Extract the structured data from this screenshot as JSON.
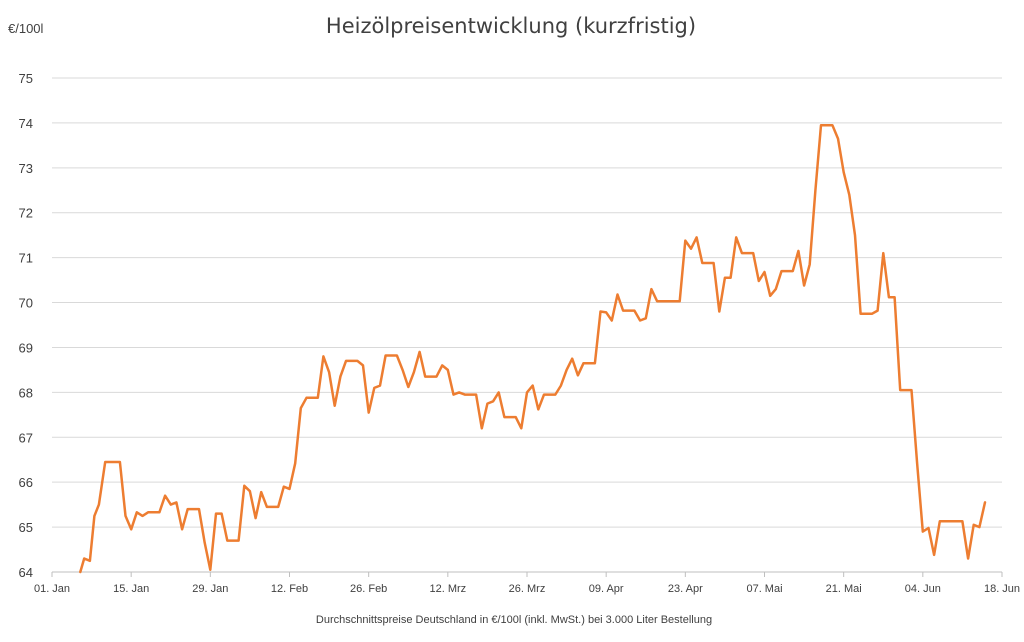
{
  "chart_data": {
    "type": "line",
    "title": "Heizölpreisentwicklung (kurzfristig)",
    "ylabel": "€/100l",
    "xlabel": "Durchschnittspreise Deutschland in €/100l (inkl. MwSt.) bei 3.000 Liter Bestellung",
    "ylim": [
      64,
      75
    ],
    "yticks": [
      64,
      65,
      66,
      67,
      68,
      69,
      70,
      71,
      72,
      73,
      74,
      75
    ],
    "xlim": [
      0,
      168
    ],
    "xticks": [
      {
        "x": 0,
        "label": "01. Jan"
      },
      {
        "x": 14,
        "label": "15. Jan"
      },
      {
        "x": 28,
        "label": "29. Jan"
      },
      {
        "x": 42,
        "label": "12. Feb"
      },
      {
        "x": 56,
        "label": "26. Feb"
      },
      {
        "x": 70,
        "label": "12. Mrz"
      },
      {
        "x": 84,
        "label": "26. Mrz"
      },
      {
        "x": 98,
        "label": "09. Apr"
      },
      {
        "x": 112,
        "label": "23. Apr"
      },
      {
        "x": 126,
        "label": "07. Mai"
      },
      {
        "x": 140,
        "label": "21. Mai"
      },
      {
        "x": 154,
        "label": "04. Jun"
      },
      {
        "x": 168,
        "label": "18. Jun"
      }
    ],
    "grid": true,
    "legend": "none",
    "color": "#ed7d31",
    "series": [
      {
        "points": [
          [
            5,
            64.0
          ],
          [
            5.7,
            64.3
          ],
          [
            6.7,
            64.25
          ],
          [
            7.5,
            65.25
          ],
          [
            8.3,
            65.5
          ],
          [
            9.4,
            66.45
          ],
          [
            11,
            66.45
          ],
          [
            12,
            66.45
          ],
          [
            13,
            65.25
          ],
          [
            14,
            64.95
          ],
          [
            15,
            65.33
          ],
          [
            16,
            65.25
          ],
          [
            17,
            65.33
          ],
          [
            19,
            65.33
          ],
          [
            20,
            65.7
          ],
          [
            21,
            65.5
          ],
          [
            22,
            65.55
          ],
          [
            23,
            64.95
          ],
          [
            24,
            65.4
          ],
          [
            26,
            65.4
          ],
          [
            27,
            64.65
          ],
          [
            28,
            64.05
          ],
          [
            29,
            65.3
          ],
          [
            30,
            65.3
          ],
          [
            31,
            64.7
          ],
          [
            33,
            64.7
          ],
          [
            34,
            65.92
          ],
          [
            35,
            65.8
          ],
          [
            36,
            65.2
          ],
          [
            37,
            65.78
          ],
          [
            38,
            65.45
          ],
          [
            40,
            65.45
          ],
          [
            41,
            65.9
          ],
          [
            42,
            65.85
          ],
          [
            43,
            66.42
          ],
          [
            44,
            67.65
          ],
          [
            45,
            67.88
          ],
          [
            47,
            67.88
          ],
          [
            48,
            68.8
          ],
          [
            49,
            68.45
          ],
          [
            50,
            67.7
          ],
          [
            51,
            68.35
          ],
          [
            52,
            68.7
          ],
          [
            54,
            68.7
          ],
          [
            55,
            68.6
          ],
          [
            56,
            67.55
          ],
          [
            57,
            68.1
          ],
          [
            58,
            68.15
          ],
          [
            59,
            68.82
          ],
          [
            61,
            68.82
          ],
          [
            62,
            68.5
          ],
          [
            63,
            68.12
          ],
          [
            64,
            68.45
          ],
          [
            65,
            68.9
          ],
          [
            66,
            68.35
          ],
          [
            68,
            68.35
          ],
          [
            69,
            68.6
          ],
          [
            70,
            68.5
          ],
          [
            71,
            67.95
          ],
          [
            72,
            68.0
          ],
          [
            73,
            67.95
          ],
          [
            75,
            67.95
          ],
          [
            76,
            67.2
          ],
          [
            77,
            67.75
          ],
          [
            78,
            67.8
          ],
          [
            79,
            68.0
          ],
          [
            80,
            67.45
          ],
          [
            82,
            67.45
          ],
          [
            83,
            67.2
          ],
          [
            84,
            68.0
          ],
          [
            85,
            68.15
          ],
          [
            86,
            67.62
          ],
          [
            87,
            67.95
          ],
          [
            89,
            67.95
          ],
          [
            90,
            68.15
          ],
          [
            91,
            68.5
          ],
          [
            92,
            68.75
          ],
          [
            93,
            68.38
          ],
          [
            94,
            68.65
          ],
          [
            96,
            68.65
          ],
          [
            97,
            69.8
          ],
          [
            98,
            69.78
          ],
          [
            99,
            69.6
          ],
          [
            100,
            70.18
          ],
          [
            101,
            69.82
          ],
          [
            103,
            69.82
          ],
          [
            104,
            69.6
          ],
          [
            105,
            69.65
          ],
          [
            106,
            70.3
          ],
          [
            107,
            70.03
          ],
          [
            109,
            70.03
          ],
          [
            111,
            70.03
          ],
          [
            112,
            71.38
          ],
          [
            113,
            71.2
          ],
          [
            114,
            71.45
          ],
          [
            115,
            70.88
          ],
          [
            117,
            70.88
          ],
          [
            118,
            69.8
          ],
          [
            119,
            70.55
          ],
          [
            120,
            70.55
          ],
          [
            121,
            71.45
          ],
          [
            122,
            71.1
          ],
          [
            124,
            71.1
          ],
          [
            125,
            70.48
          ],
          [
            126,
            70.68
          ],
          [
            127,
            70.15
          ],
          [
            128,
            70.3
          ],
          [
            129,
            70.7
          ],
          [
            131,
            70.7
          ],
          [
            132,
            71.15
          ],
          [
            133,
            70.38
          ],
          [
            134,
            70.85
          ],
          [
            135,
            72.5
          ],
          [
            136,
            73.95
          ],
          [
            138,
            73.95
          ],
          [
            139,
            73.65
          ],
          [
            140,
            72.9
          ],
          [
            141,
            72.4
          ],
          [
            142,
            71.5
          ],
          [
            143,
            69.75
          ],
          [
            145,
            69.75
          ],
          [
            146,
            69.82
          ],
          [
            147,
            71.1
          ],
          [
            148,
            70.12
          ],
          [
            149,
            70.12
          ],
          [
            150,
            68.05
          ],
          [
            152,
            68.05
          ],
          [
            153,
            66.4
          ],
          [
            154,
            64.9
          ],
          [
            155,
            64.98
          ],
          [
            156,
            64.38
          ],
          [
            157,
            65.13
          ],
          [
            159,
            65.13
          ],
          [
            161,
            65.13
          ],
          [
            162,
            64.3
          ],
          [
            163,
            65.05
          ],
          [
            164,
            65.0
          ],
          [
            165,
            65.55
          ]
        ]
      }
    ]
  }
}
